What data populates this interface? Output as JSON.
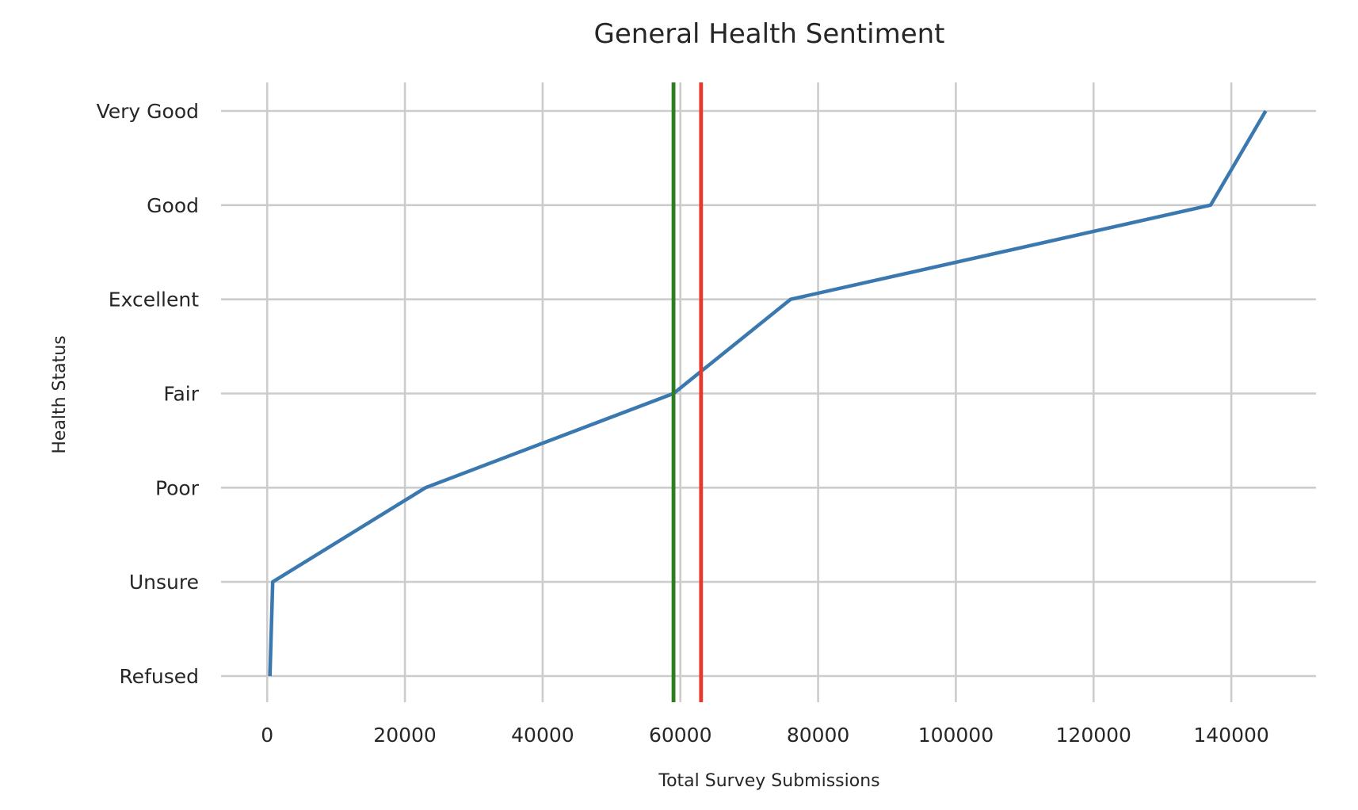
{
  "chart_data": {
    "type": "line",
    "title": "General Health Sentiment",
    "xlabel": "Total Survey Submissions",
    "ylabel": "Health Status",
    "categories": [
      "Refused",
      "Unsure",
      "Poor",
      "Fair",
      "Excellent",
      "Good",
      "Very Good"
    ],
    "series": [
      {
        "x": [
          400,
          800,
          23000,
          59000,
          76000,
          137000,
          145000
        ],
        "y": [
          "Refused",
          "Unsure",
          "Poor",
          "Fair",
          "Excellent",
          "Good",
          "Very Good"
        ],
        "color": "#3a78b0"
      }
    ],
    "reference_lines": [
      {
        "x": 59000,
        "color": "#2e7d1e"
      },
      {
        "x": 63000,
        "color": "#e8392b"
      }
    ],
    "xlim": [
      -6700,
      152300
    ],
    "xticks": [
      0,
      20000,
      40000,
      60000,
      80000,
      100000,
      120000,
      140000
    ],
    "xtick_labels": [
      "0",
      "20000",
      "40000",
      "60000",
      "80000",
      "100000",
      "120000",
      "140000"
    ],
    "grid": true,
    "legend": "none"
  }
}
